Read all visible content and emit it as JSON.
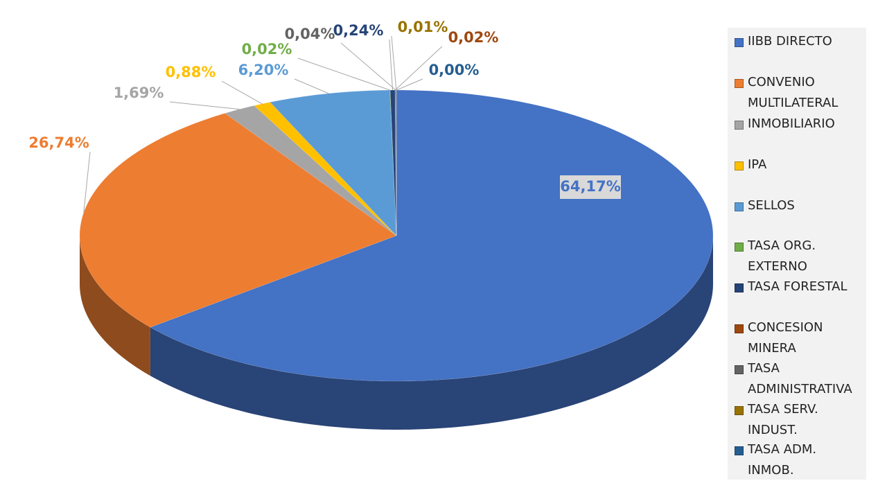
{
  "chart_data": {
    "type": "pie",
    "categories": [
      "IIBB DIRECTO",
      "CONVENIO MULTILATERAL",
      "INMOBILIARIO",
      "IPA",
      "SELLOS",
      "TASA ORG. EXTERNO",
      "TASA FORESTAL",
      "CONCESION MINERA",
      "TASA ADMINISTRATIVA",
      "TASA SERV. INDUST.",
      "TASA ADM. INMOB."
    ],
    "values": [
      64.17,
      26.74,
      1.69,
      0.88,
      6.2,
      0.02,
      0.24,
      0.02,
      0.04,
      0.01,
      0.0
    ],
    "value_labels": [
      "64,17%",
      "26,74%",
      "1,69%",
      "0,88%",
      "6,20%",
      "0,02%",
      "0,24%",
      "0,02%",
      "0,04%",
      "0,01%",
      "0,00%"
    ],
    "colors": [
      "#4472c4",
      "#ed7d31",
      "#a5a5a5",
      "#ffc000",
      "#5b9bd5",
      "#70ad47",
      "#264478",
      "#9e480e",
      "#636363",
      "#997300",
      "#255e91"
    ],
    "legend": "right"
  }
}
